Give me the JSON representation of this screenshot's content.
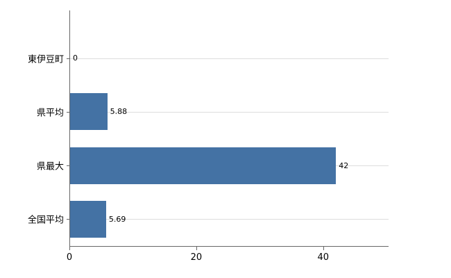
{
  "chart_data": {
    "type": "bar",
    "orientation": "horizontal",
    "title": "",
    "xlabel": "",
    "ylabel": "",
    "categories": [
      "東伊豆町",
      "県平均",
      "県最大",
      "全国平均"
    ],
    "values": [
      0,
      5.88,
      42,
      5.69
    ],
    "value_labels": [
      "0",
      "5.88",
      "42",
      "5.69"
    ],
    "xlim": [
      0,
      50.3
    ],
    "xticks": [
      0,
      20,
      40
    ],
    "xtick_labels": [
      "0",
      "20",
      "40"
    ],
    "grid": "horizontal light gridlines at each category",
    "legend": "none",
    "bar_color": "#4472a4"
  },
  "colors": {
    "bar": "#4472a4",
    "axis": "#666666",
    "grid": "#dddddd",
    "background": "#ffffff",
    "text": "#000000"
  }
}
